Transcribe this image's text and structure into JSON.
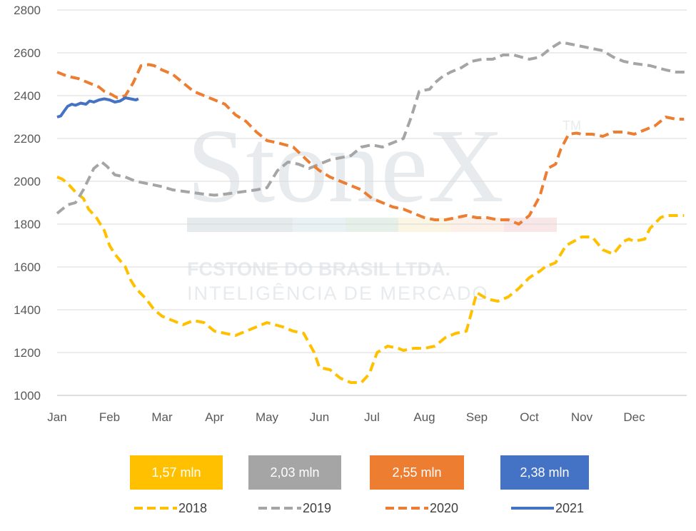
{
  "chart_data": {
    "type": "line",
    "title": "",
    "xlabel": "",
    "ylabel": "",
    "ylim": [
      1000,
      2800
    ],
    "yticks": [
      1000,
      1200,
      1400,
      1600,
      1800,
      2000,
      2200,
      2400,
      2600,
      2800
    ],
    "xlim": [
      0,
      12
    ],
    "months": [
      "Jan",
      "Feb",
      "Mar",
      "Apr",
      "May",
      "Jun",
      "Jul",
      "Aug",
      "Sep",
      "Oct",
      "Nov",
      "Dec"
    ],
    "grid": "horizontal",
    "legend_position": "bottom",
    "series": [
      {
        "name": "2018",
        "color": "#FFC000",
        "dash": true,
        "x": [
          0,
          0.1,
          0.2,
          0.35,
          0.5,
          0.6,
          0.75,
          0.9,
          1.0,
          1.1,
          1.3,
          1.4,
          1.5,
          1.7,
          1.85,
          2.0,
          2.2,
          2.4,
          2.6,
          2.8,
          3.0,
          3.2,
          3.4,
          3.6,
          3.8,
          4.0,
          4.3,
          4.5,
          4.7,
          4.9,
          5.0,
          5.2,
          5.4,
          5.5,
          5.6,
          5.8,
          5.95,
          6.1,
          6.3,
          6.5,
          6.6,
          6.8,
          6.9,
          7.0,
          7.2,
          7.4,
          7.6,
          7.8,
          8.0,
          8.2,
          8.4,
          8.6,
          8.8,
          9.0,
          9.2,
          9.3,
          9.5,
          9.7,
          10.0,
          10.2,
          10.4,
          10.6,
          10.8,
          10.9,
          11.0,
          11.2,
          11.3,
          11.5,
          11.6,
          11.8,
          11.95
        ],
        "y": [
          2020,
          2010,
          1990,
          1950,
          1920,
          1870,
          1830,
          1770,
          1700,
          1660,
          1600,
          1540,
          1500,
          1450,
          1400,
          1370,
          1350,
          1330,
          1350,
          1340,
          1300,
          1290,
          1280,
          1300,
          1320,
          1340,
          1320,
          1300,
          1290,
          1200,
          1130,
          1120,
          1080,
          1070,
          1060,
          1060,
          1100,
          1200,
          1230,
          1220,
          1210,
          1220,
          1220,
          1220,
          1230,
          1270,
          1290,
          1300,
          1480,
          1450,
          1440,
          1460,
          1500,
          1550,
          1580,
          1600,
          1620,
          1700,
          1740,
          1740,
          1680,
          1660,
          1720,
          1730,
          1720,
          1730,
          1780,
          1830,
          1840,
          1840,
          1840
        ]
      },
      {
        "name": "2019",
        "color": "#A5A5A5",
        "dash": true,
        "x": [
          0,
          0.2,
          0.35,
          0.5,
          0.7,
          0.85,
          0.95,
          1.1,
          1.3,
          1.5,
          1.8,
          2.0,
          2.2,
          2.5,
          2.8,
          3.0,
          3.2,
          3.5,
          3.8,
          4.0,
          4.2,
          4.4,
          4.6,
          4.8,
          5.0,
          5.2,
          5.4,
          5.6,
          5.8,
          6.0,
          6.2,
          6.4,
          6.6,
          6.75,
          6.9,
          7.1,
          7.2,
          7.35,
          7.5,
          7.7,
          7.9,
          8.1,
          8.3,
          8.5,
          8.7,
          9.0,
          9.2,
          9.4,
          9.6,
          9.8,
          10.0,
          10.2,
          10.4,
          10.6,
          10.8,
          11.0,
          11.3,
          11.6,
          11.8,
          12.0
        ],
        "y": [
          1850,
          1890,
          1900,
          1960,
          2060,
          2090,
          2070,
          2030,
          2020,
          2000,
          1985,
          1975,
          1960,
          1950,
          1940,
          1935,
          1940,
          1950,
          1960,
          1970,
          2050,
          2090,
          2080,
          2060,
          2080,
          2100,
          2110,
          2120,
          2160,
          2170,
          2160,
          2180,
          2200,
          2300,
          2420,
          2430,
          2460,
          2490,
          2510,
          2530,
          2560,
          2570,
          2570,
          2590,
          2590,
          2570,
          2580,
          2620,
          2650,
          2640,
          2630,
          2620,
          2610,
          2580,
          2560,
          2550,
          2540,
          2520,
          2510,
          2510
        ]
      },
      {
        "name": "2020",
        "color": "#ED7D31",
        "dash": true,
        "x": [
          0,
          0.2,
          0.4,
          0.6,
          0.8,
          0.9,
          1.0,
          1.15,
          1.3,
          1.45,
          1.6,
          1.75,
          1.85,
          2.0,
          2.2,
          2.4,
          2.6,
          2.8,
          3.0,
          3.2,
          3.4,
          3.6,
          3.8,
          4.0,
          4.2,
          4.5,
          4.8,
          5.0,
          5.2,
          5.5,
          5.8,
          6.0,
          6.2,
          6.4,
          6.6,
          6.8,
          7.0,
          7.2,
          7.4,
          7.6,
          7.8,
          8.0,
          8.2,
          8.4,
          8.6,
          8.8,
          9.0,
          9.2,
          9.35,
          9.5,
          9.6,
          9.75,
          9.9,
          10.0,
          10.2,
          10.4,
          10.6,
          10.8,
          11.0,
          11.2,
          11.4,
          11.6,
          11.8,
          11.95
        ],
        "y": [
          2510,
          2490,
          2480,
          2460,
          2440,
          2420,
          2410,
          2390,
          2400,
          2460,
          2540,
          2545,
          2540,
          2520,
          2500,
          2460,
          2420,
          2400,
          2380,
          2360,
          2310,
          2280,
          2230,
          2190,
          2180,
          2160,
          2090,
          2050,
          2020,
          1990,
          1960,
          1920,
          1900,
          1880,
          1870,
          1850,
          1830,
          1820,
          1820,
          1830,
          1840,
          1830,
          1830,
          1820,
          1820,
          1800,
          1840,
          1930,
          2060,
          2080,
          2150,
          2220,
          2225,
          2220,
          2220,
          2210,
          2230,
          2230,
          2220,
          2240,
          2260,
          2300,
          2290,
          2290
        ]
      },
      {
        "name": "2021",
        "color": "#4472C4",
        "dash": false,
        "x": [
          0,
          0.07,
          0.14,
          0.2,
          0.28,
          0.35,
          0.45,
          0.55,
          0.62,
          0.7,
          0.8,
          0.9,
          1.0,
          1.1,
          1.2,
          1.3,
          1.4,
          1.5,
          1.55
        ],
        "y": [
          2300,
          2305,
          2330,
          2350,
          2360,
          2355,
          2365,
          2360,
          2375,
          2370,
          2380,
          2385,
          2380,
          2370,
          2375,
          2390,
          2385,
          2380,
          2385
        ]
      }
    ]
  },
  "summary_boxes": [
    {
      "label": "1,57 mln",
      "color": "#FFC000"
    },
    {
      "label": "2,03 mln",
      "color": "#A5A5A5"
    },
    {
      "label": "2,55 mln",
      "color": "#ED7D31"
    },
    {
      "label": "2,38 mln",
      "color": "#4472C4"
    }
  ],
  "watermark": {
    "brand": "StoneX",
    "tm": "TM",
    "company": "FCSTONE DO BRASIL LTDA.",
    "division": "INTELIGÊNCIA DE MERCADO"
  }
}
